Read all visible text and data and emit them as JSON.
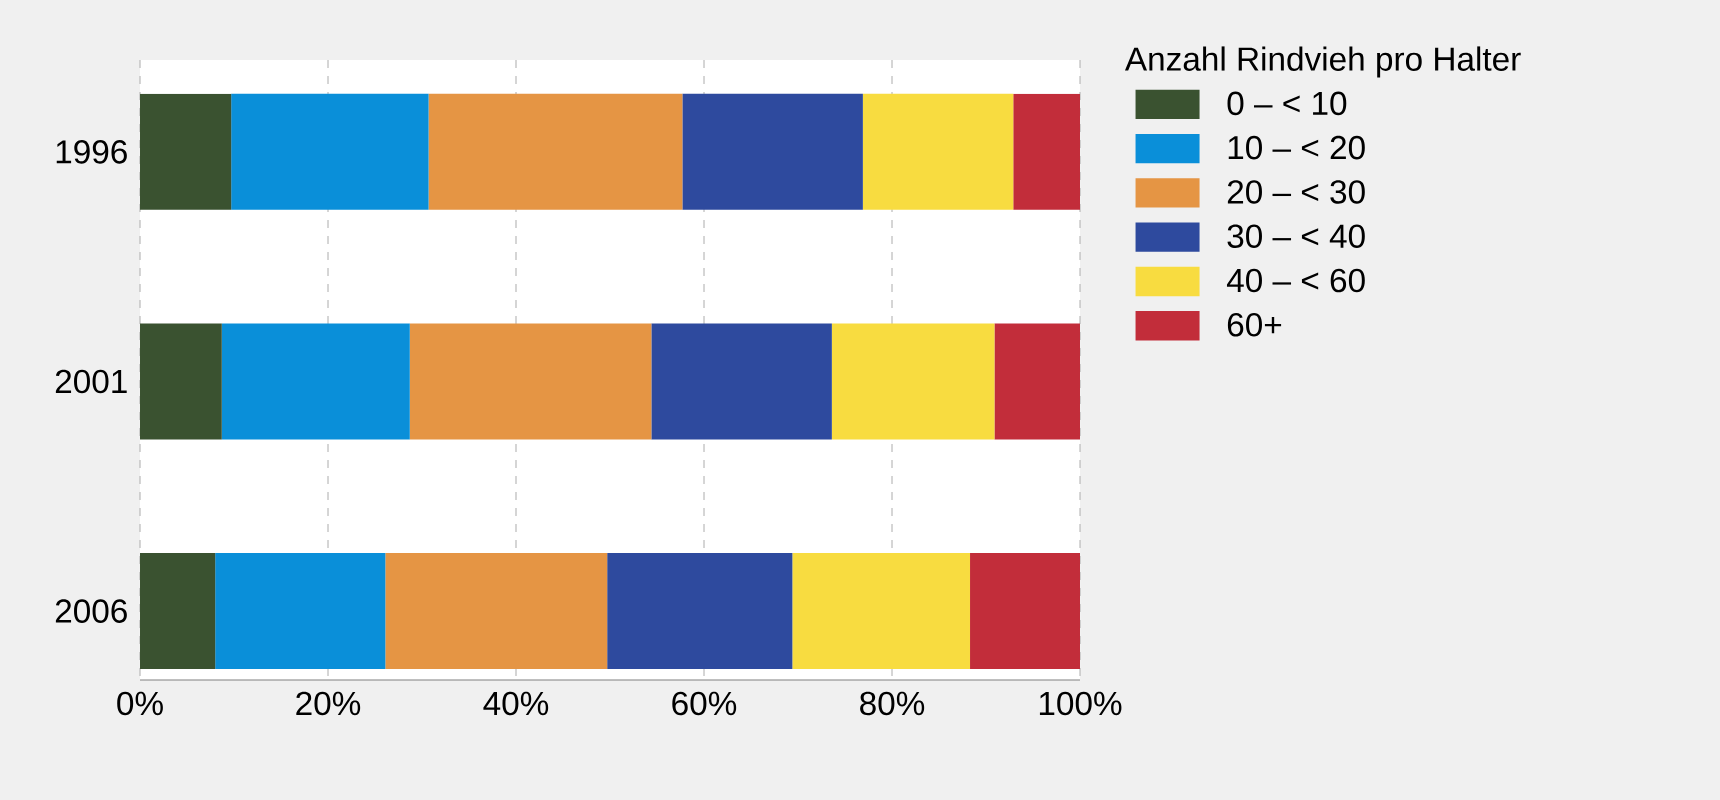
{
  "chart_data": {
    "type": "bar",
    "orientation": "horizontal",
    "stacked": true,
    "categories": [
      "1996",
      "2001",
      "2006"
    ],
    "legend_title": "Anzahl Rindvieh pro Halter",
    "legend": "right",
    "grid": "x",
    "xlim": [
      0,
      100
    ],
    "xticks": [
      {
        "value": 0,
        "label": "0%"
      },
      {
        "value": 20,
        "label": "20%"
      },
      {
        "value": 40,
        "label": "40%"
      },
      {
        "value": 60,
        "label": "60%"
      },
      {
        "value": 80,
        "label": "80%"
      },
      {
        "value": 100,
        "label": "100%"
      }
    ],
    "series": [
      {
        "name": "0 – < 10",
        "color": "#3a5230",
        "values": [
          9.7,
          8.7,
          8.0
        ]
      },
      {
        "name": "10 – < 20",
        "color": "#0a8fd9",
        "values": [
          21.0,
          20.0,
          18.1
        ]
      },
      {
        "name": "20 – < 30",
        "color": "#e59544",
        "values": [
          27.0,
          25.7,
          23.6
        ]
      },
      {
        "name": "30 – < 40",
        "color": "#2e4a9e",
        "values": [
          19.2,
          19.2,
          19.7
        ]
      },
      {
        "name": "40 – < 60",
        "color": "#f8dc40",
        "values": [
          16.0,
          17.3,
          18.9
        ]
      },
      {
        "name": "60+",
        "color": "#c22d3a",
        "values": [
          7.1,
          9.1,
          11.7
        ]
      }
    ]
  }
}
